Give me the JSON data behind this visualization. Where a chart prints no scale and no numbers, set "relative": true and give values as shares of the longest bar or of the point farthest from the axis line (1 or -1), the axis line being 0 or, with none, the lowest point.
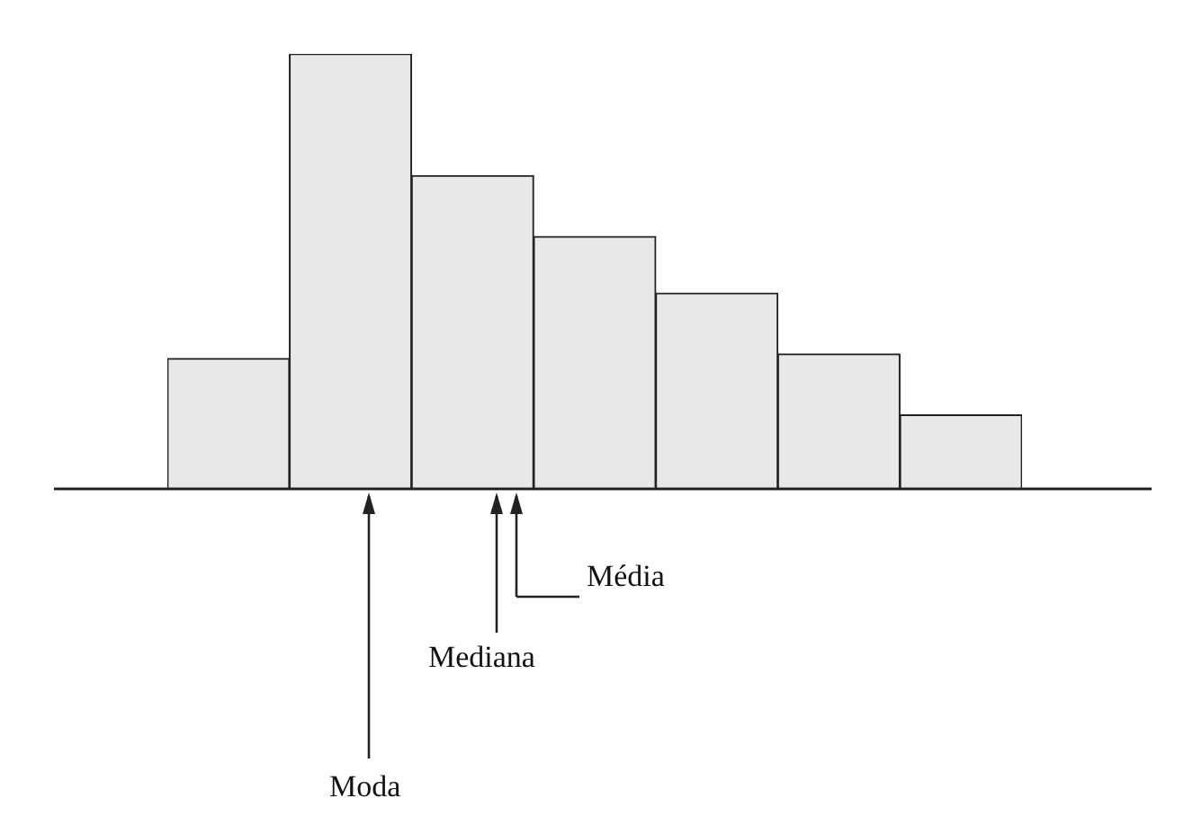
{
  "chart_data": {
    "type": "bar",
    "relative": true,
    "categories": [
      null,
      null,
      null,
      null,
      null,
      null,
      null
    ],
    "values": [
      0.3,
      1,
      0.72,
      0.58,
      0.45,
      0.31,
      0.17
    ],
    "color": "#e8e8e8",
    "grid": false,
    "legend": false,
    "tick_labels": false,
    "annotations": [
      "Moda",
      "Mediana",
      "Média"
    ]
  }
}
